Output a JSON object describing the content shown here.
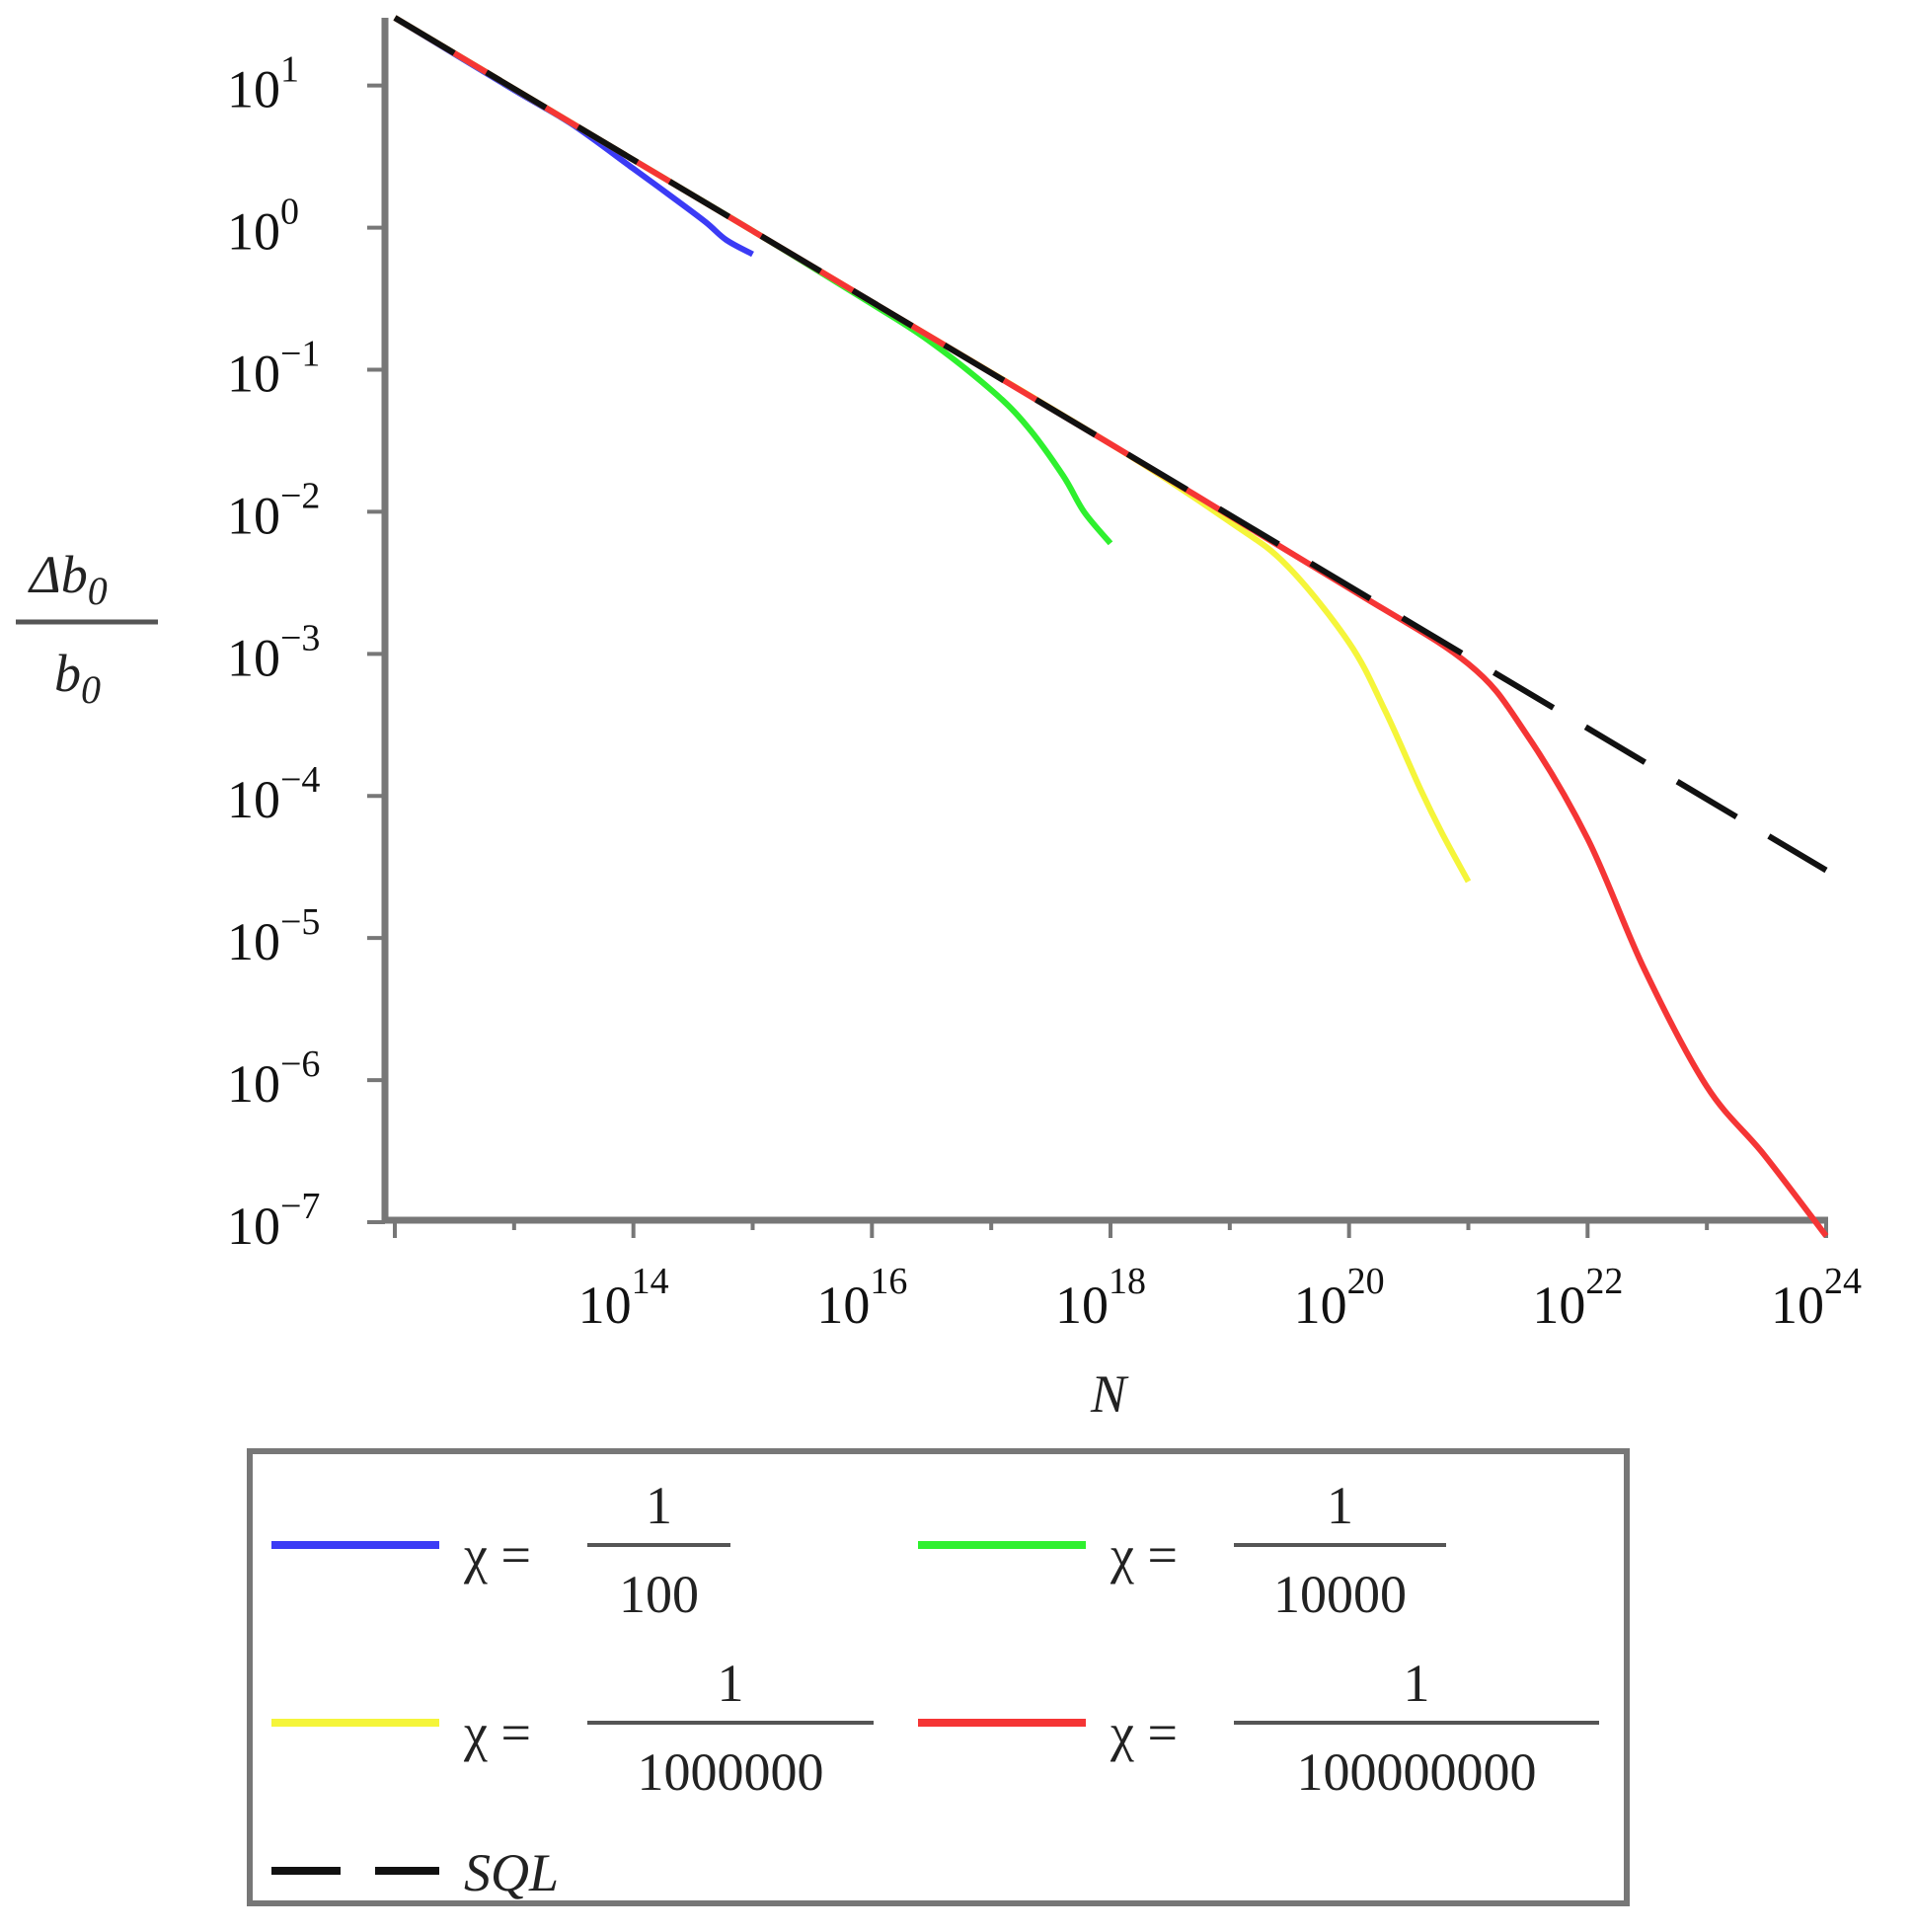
{
  "chart_data": {
    "type": "line",
    "x_scale": "log",
    "y_scale": "log",
    "xlim": [
      1000000000000.0,
      1e+24
    ],
    "ylim": [
      1e-07,
      30
    ],
    "xlabel": "N",
    "ylabel": {
      "numerator": "Δb",
      "denominator": "b",
      "subscript": "0"
    },
    "x_ticks": [
      {
        "base": "10",
        "exp": "14",
        "value": 100000000000000.0
      },
      {
        "base": "10",
        "exp": "16",
        "value": 1e+16
      },
      {
        "base": "10",
        "exp": "18",
        "value": 1e+18
      },
      {
        "base": "10",
        "exp": "20",
        "value": 1e+20
      },
      {
        "base": "10",
        "exp": "22",
        "value": 1e+22
      },
      {
        "base": "10",
        "exp": "24",
        "value": 1e+24
      }
    ],
    "y_ticks": [
      {
        "base": "10",
        "exp": "1",
        "value": 10
      },
      {
        "base": "10",
        "exp": "0",
        "value": 1
      },
      {
        "base": "10",
        "exp": "−1",
        "value": 0.1
      },
      {
        "base": "10",
        "exp": "−2",
        "value": 0.01
      },
      {
        "base": "10",
        "exp": "−3",
        "value": 0.001
      },
      {
        "base": "10",
        "exp": "−4",
        "value": 0.0001
      },
      {
        "base": "10",
        "exp": "−5",
        "value": 1e-05
      },
      {
        "base": "10",
        "exp": "−6",
        "value": 1e-06
      },
      {
        "base": "10",
        "exp": "−7",
        "value": 1e-07
      }
    ],
    "grid": false,
    "legend_position": "bottom",
    "series": [
      {
        "key": "chi-100",
        "legend_prefix": "χ =",
        "legend_num": "1",
        "legend_den": "100",
        "color": "#3b3bf5",
        "dash": "none",
        "x": [
          1000000000000.0,
          10000000000000.0,
          30000000000000.0,
          100000000000000.0,
          200000000000000.0,
          400000000000000.0,
          600000000000000.0,
          1000000000000000.0
        ],
        "y": [
          30,
          9.3,
          5.4,
          2.6,
          1.7,
          1.1,
          0.82,
          0.65
        ]
      },
      {
        "key": "chi-10000",
        "legend_prefix": "χ =",
        "legend_num": "1",
        "legend_den": "10000",
        "color": "#2ef02e",
        "dash": "none",
        "x": [
          1000000000000.0,
          100000000000000.0,
          1000000000000000.0,
          1e+16,
          3e+16,
          1e+17,
          2e+17,
          4e+17,
          6e+17,
          1e+18
        ],
        "y": [
          30,
          3.0,
          0.95,
          0.29,
          0.16,
          0.072,
          0.04,
          0.018,
          0.01,
          0.006
        ]
      },
      {
        "key": "chi-1000000",
        "legend_prefix": "χ =",
        "legend_num": "1",
        "legend_den": "1000000",
        "color": "#f5f53a",
        "dash": "none",
        "x": [
          1000000000000.0,
          100000000000000.0,
          1e+16,
          1e+18,
          1e+19,
          3e+19,
          1e+20,
          2e+20,
          4e+20,
          6e+20,
          1e+21
        ],
        "y": [
          30,
          3.0,
          0.3,
          0.03,
          0.0085,
          0.0042,
          0.0012,
          0.0004,
          0.00011,
          5.5e-05,
          2.5e-05
        ]
      },
      {
        "key": "chi-100000000",
        "legend_prefix": "χ =",
        "legend_num": "1",
        "legend_den": "100000000",
        "color": "#f53535",
        "dash": "none",
        "x": [
          1000000000000.0,
          100000000000000.0,
          1e+16,
          1e+18,
          1e+20,
          1e+21,
          3e+21,
          1e+22,
          3e+22,
          1e+23,
          3e+23,
          1e+24
        ],
        "y": [
          30,
          3.0,
          0.3,
          0.03,
          0.0029,
          0.00085,
          0.00028,
          5e-05,
          6e-06,
          9e-07,
          3e-07,
          8e-08
        ]
      },
      {
        "key": "sql",
        "legend_prefix": "",
        "legend_label": "SQL",
        "color": "#111111",
        "dash": "dashed",
        "x": [
          1000000000000.0,
          1e+24
        ],
        "y": [
          30,
          3e-05
        ]
      }
    ]
  }
}
